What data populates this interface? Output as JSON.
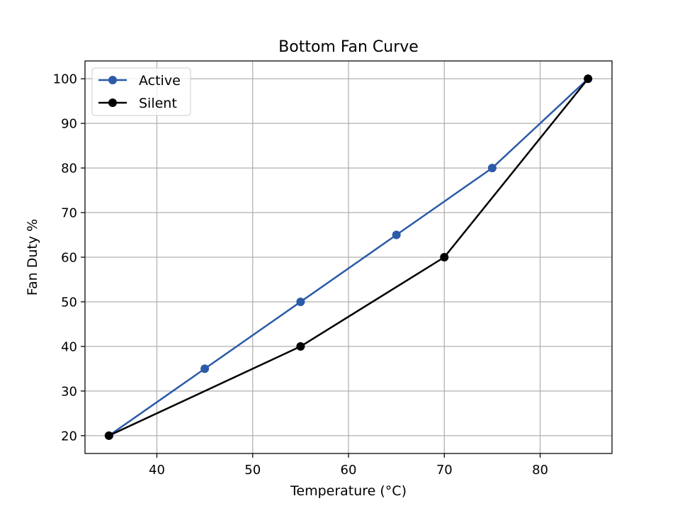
{
  "chart_data": {
    "type": "line",
    "title": "Bottom Fan Curve",
    "xlabel": "Temperature (°C)",
    "ylabel": "Fan Duty %",
    "xlim": [
      32.5,
      87.5
    ],
    "ylim": [
      16,
      104
    ],
    "xticks": [
      40,
      50,
      60,
      70,
      80
    ],
    "yticks": [
      20,
      30,
      40,
      50,
      60,
      70,
      80,
      90,
      100
    ],
    "grid": true,
    "legend_position": "top-left",
    "series": [
      {
        "name": "Active",
        "color": "#2b5aa8",
        "x": [
          35,
          45,
          55,
          65,
          75,
          85
        ],
        "y": [
          20,
          35,
          50,
          65,
          80,
          100
        ]
      },
      {
        "name": "Silent",
        "color": "#000000",
        "x": [
          35,
          55,
          70,
          85
        ],
        "y": [
          20,
          40,
          60,
          100
        ]
      }
    ]
  }
}
